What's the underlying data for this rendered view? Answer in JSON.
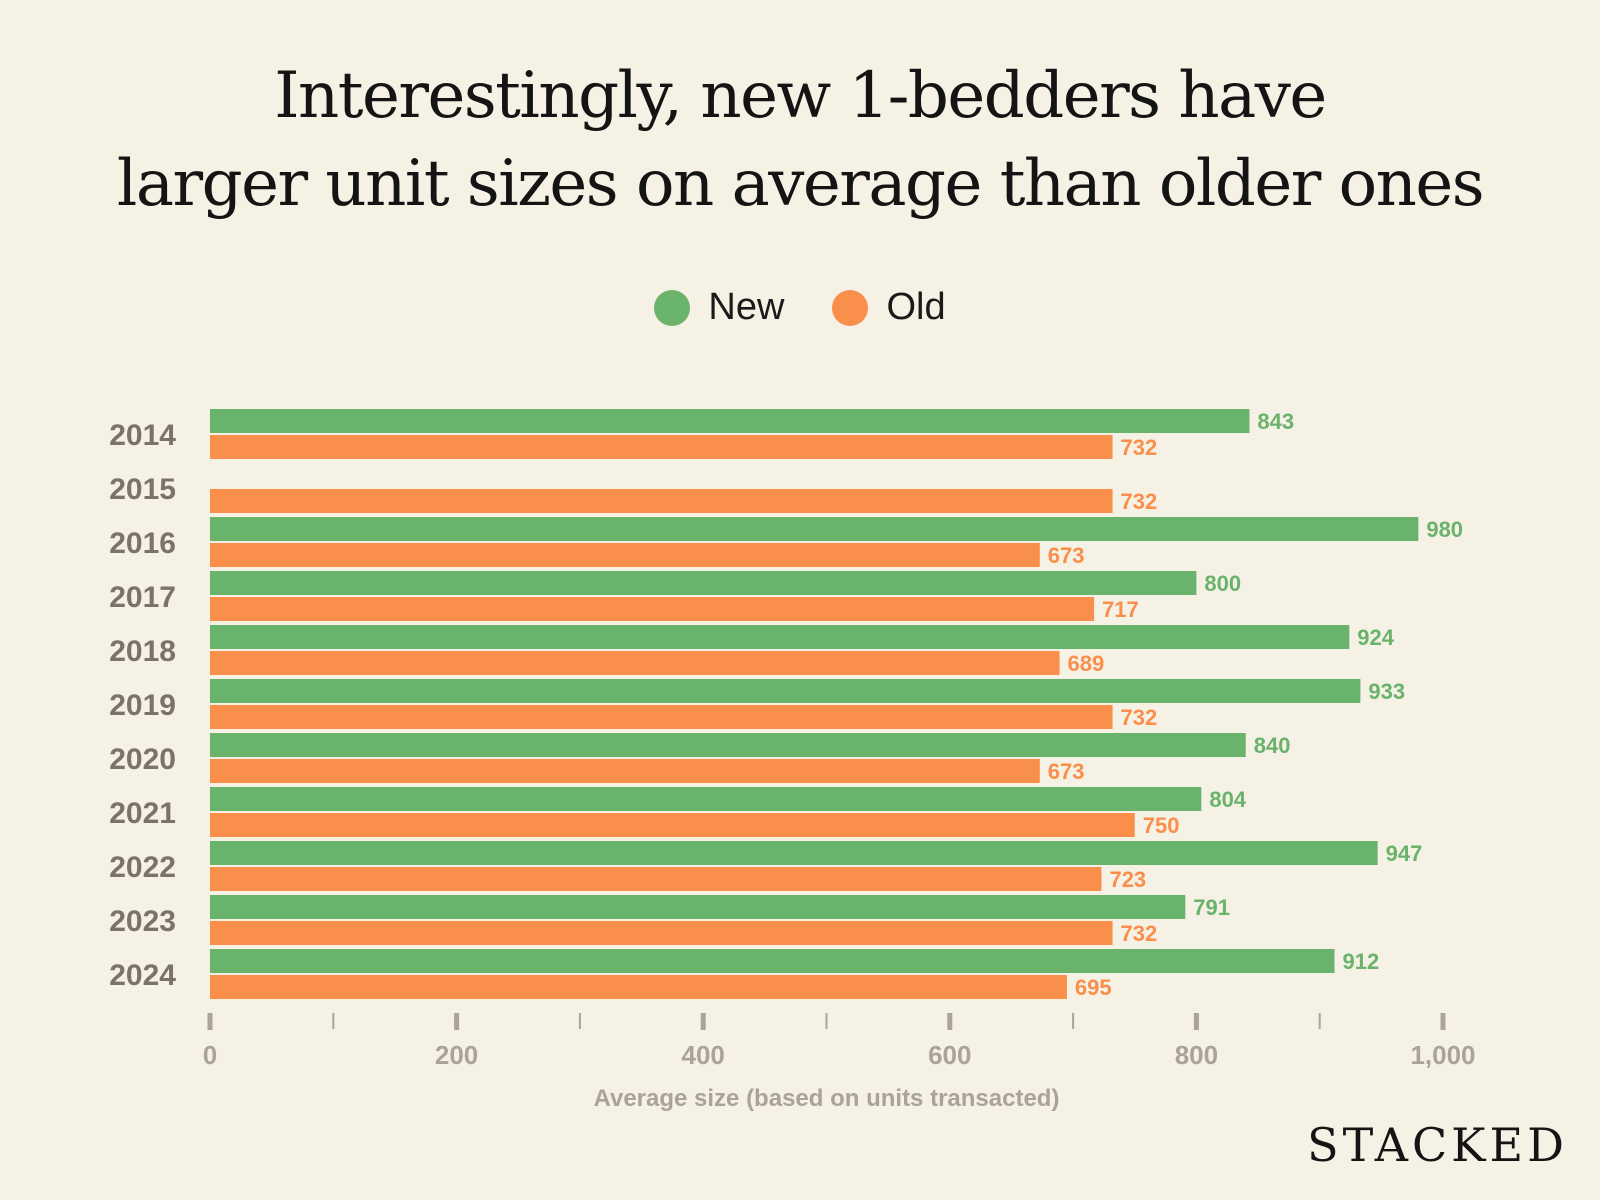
{
  "title_lines": [
    "Interestingly, new 1-bedders have",
    "larger unit sizes on average than older ones"
  ],
  "brand": "STACKED",
  "colors": {
    "background": "#f6f1e5",
    "new": "#69b36c",
    "old": "#fa8f4b",
    "category_text": "#7a736b",
    "axis": "#a9a399"
  },
  "legend": [
    {
      "label": "New",
      "color": "#69b36c"
    },
    {
      "label": "Old",
      "color": "#fa8f4b"
    }
  ],
  "chart_data": {
    "type": "bar",
    "orientation": "horizontal",
    "title": "Interestingly, new 1-bedders have larger unit sizes on average than older ones",
    "categories": [
      "2014",
      "2015",
      "2016",
      "2017",
      "2018",
      "2019",
      "2020",
      "2021",
      "2022",
      "2023",
      "2024"
    ],
    "series": [
      {
        "name": "New",
        "color": "#69b36c",
        "values": [
          843,
          null,
          980,
          800,
          924,
          933,
          840,
          804,
          947,
          791,
          912
        ]
      },
      {
        "name": "Old",
        "color": "#fa8f4b",
        "values": [
          732,
          732,
          673,
          717,
          689,
          732,
          673,
          750,
          723,
          732,
          695
        ]
      }
    ],
    "xlabel": "Average size (based on units transacted)",
    "ylabel": "",
    "xlim": [
      0,
      1000
    ],
    "x_ticks": [
      0,
      200,
      400,
      600,
      800,
      1000
    ],
    "x_tick_labels": [
      "0",
      "200",
      "400",
      "600",
      "800",
      "1,000"
    ],
    "x_minor_ticks": [
      100,
      300,
      500,
      700,
      900
    ],
    "grid": false,
    "legend_position": "top-center",
    "data_labels": true
  }
}
